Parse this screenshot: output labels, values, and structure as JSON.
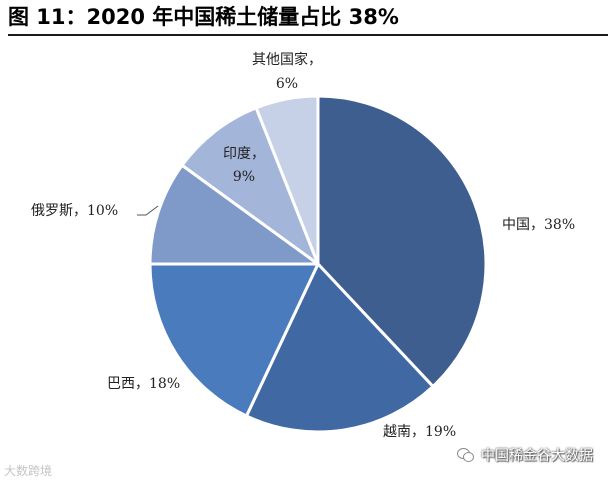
{
  "header": {
    "title": "图 11：2020 年中国稀土储量占比 38%"
  },
  "chart_data": {
    "type": "pie",
    "title": "图 11：2020 年中国稀土储量占比 38%",
    "start": "12 o'clock, clockwise",
    "slices": [
      {
        "label": "中国，38%",
        "value": 38,
        "color": "#3e5e8f"
      },
      {
        "label": "越南，19%",
        "value": 19,
        "color": "#4068a2"
      },
      {
        "label": "巴西，18%",
        "value": 18,
        "color": "#4a7cbd"
      },
      {
        "label": "俄罗斯，10%",
        "value": 10,
        "color": "#7f9ac8"
      },
      {
        "label": "印度，9%",
        "value": 9,
        "color": "#a3b5d9"
      },
      {
        "label": "其他国家，6%",
        "value": 6,
        "color": "#c6d1e8"
      }
    ]
  },
  "watermarks": {
    "left": "大数跨境",
    "right": "中国稀金谷大数据"
  }
}
